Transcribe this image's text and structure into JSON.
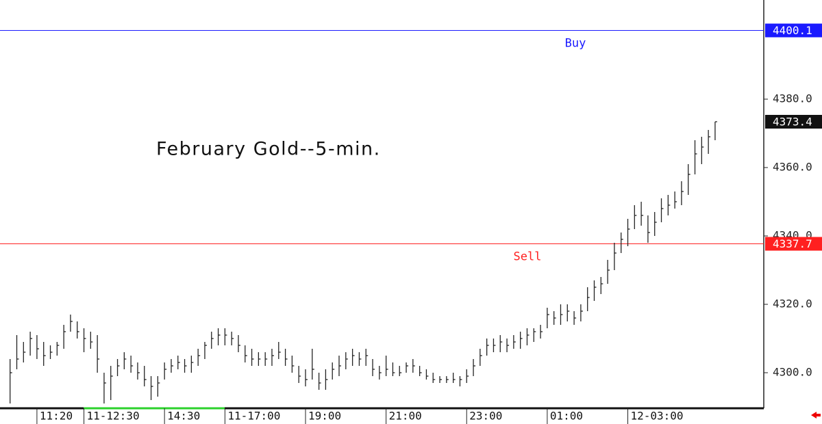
{
  "chart_data": {
    "type": "ohlc",
    "title": "February Gold--5-min.",
    "x": [
      3,
      5,
      7,
      9,
      11,
      13,
      15,
      17,
      19,
      21,
      23,
      25,
      27,
      29,
      31,
      33,
      35,
      37,
      39,
      41,
      43,
      45,
      47,
      49,
      51,
      53,
      55,
      57,
      59,
      61,
      63,
      65,
      67,
      69,
      71,
      73,
      75,
      77,
      79,
      81,
      83,
      85,
      87,
      89,
      91,
      93,
      95,
      97,
      99,
      101,
      103,
      105,
      107,
      109,
      111,
      113,
      115,
      117,
      119,
      121,
      123,
      125,
      127,
      129,
      131,
      133,
      135,
      137,
      139,
      141,
      143,
      145,
      147,
      149,
      151,
      153,
      155,
      157,
      159,
      161,
      163,
      165,
      167,
      169,
      171,
      173,
      175,
      177,
      179,
      181,
      183,
      185,
      187,
      189,
      191,
      193,
      195,
      197,
      199,
      201,
      203,
      205,
      207,
      209,
      211,
      213
    ],
    "high": [
      4304,
      4311,
      4309,
      4312,
      4311,
      4309,
      4308,
      4309,
      4314,
      4317,
      4315,
      4313,
      4312,
      4311,
      4300,
      4302,
      4304,
      4306,
      4305,
      4303,
      4302,
      4299,
      4299,
      4303,
      4304,
      4305,
      4304,
      4305,
      4307,
      4309,
      4312,
      4313,
      4313,
      4312,
      4311,
      4308,
      4307,
      4306,
      4306,
      4307,
      4309,
      4307,
      4305,
      4302,
      4301,
      4307,
      4300,
      4301,
      4303,
      4305,
      4306,
      4307,
      4306,
      4307,
      4304,
      4302,
      4305,
      4303,
      4302,
      4303,
      4304,
      4302,
      4301,
      4300,
      4299,
      4299,
      4300,
      4299,
      4301,
      4304,
      4307,
      4310,
      4310,
      4311,
      4310,
      4311,
      4312,
      4313,
      4313,
      4314,
      4319,
      4318,
      4320,
      4320,
      4318,
      4320,
      4325,
      4327,
      4328,
      4333,
      4338,
      4341,
      4345,
      4349,
      4350,
      4346,
      4347,
      4351,
      4352,
      4353,
      4356,
      4361,
      4368,
      4369,
      4371,
      4373.4
    ],
    "low": [
      4291,
      4301,
      4303,
      4305,
      4304,
      4302,
      4304,
      4305,
      4307,
      4312,
      4310,
      4306,
      4307,
      4300,
      4291,
      4292,
      4299,
      4301,
      4300,
      4298,
      4296,
      4292,
      4293,
      4298,
      4300,
      4301,
      4300,
      4300,
      4302,
      4304,
      4307,
      4308,
      4308,
      4308,
      4306,
      4303,
      4302,
      4302,
      4302,
      4302,
      4304,
      4302,
      4300,
      4297,
      4296,
      4298,
      4295,
      4295,
      4298,
      4299,
      4301,
      4302,
      4302,
      4302,
      4299,
      4298,
      4299,
      4299,
      4299,
      4300,
      4300,
      4299,
      4298,
      4297,
      4297,
      4297,
      4297,
      4296,
      4297,
      4299,
      4302,
      4305,
      4306,
      4306,
      4306,
      4307,
      4307,
      4308,
      4309,
      4310,
      4313,
      4314,
      4314,
      4315,
      4314,
      4315,
      4318,
      4321,
      4323,
      4326,
      4330,
      4335,
      4337,
      4342,
      4343,
      4338,
      4340,
      4344,
      4346,
      4348,
      4349,
      4352,
      4358,
      4361,
      4364,
      4368
    ],
    "close": [
      4300,
      4304,
      4306,
      4310,
      4307,
      4305,
      4306,
      4308,
      4312,
      4315,
      4312,
      4310,
      4309,
      4304,
      4297,
      4299,
      4302,
      4304,
      4302,
      4300,
      4298,
      4296,
      4297,
      4301,
      4302,
      4303,
      4302,
      4303,
      4305,
      4308,
      4310,
      4311,
      4311,
      4310,
      4308,
      4305,
      4304,
      4304,
      4304,
      4305,
      4306,
      4304,
      4302,
      4299,
      4298,
      4301,
      4297,
      4298,
      4301,
      4302,
      4304,
      4305,
      4304,
      4305,
      4301,
      4300,
      4301,
      4300,
      4300,
      4302,
      4302,
      4300,
      4299,
      4298,
      4298,
      4298,
      4298,
      4298,
      4299,
      4302,
      4305,
      4308,
      4308,
      4309,
      4308,
      4309,
      4310,
      4311,
      4312,
      4312,
      4317,
      4316,
      4317,
      4318,
      4316,
      4318,
      4322,
      4325,
      4326,
      4330,
      4335,
      4339,
      4342,
      4346,
      4346,
      4341,
      4344,
      4348,
      4349,
      4350,
      4353,
      4358,
      4364,
      4366,
      4369,
      4373.4
    ],
    "color": "#222222",
    "xlim": [
      0,
      227.5
    ],
    "xticks": [
      {
        "value": 11,
        "label": "11:20"
      },
      {
        "value": 25,
        "label": "11-12:30"
      },
      {
        "value": 49,
        "label": "14:30"
      },
      {
        "value": 67,
        "label": "11-17:00"
      },
      {
        "value": 91,
        "label": "19:00"
      },
      {
        "value": 115,
        "label": "21:00"
      },
      {
        "value": 139,
        "label": "23:00"
      },
      {
        "value": 163,
        "label": "01:00"
      },
      {
        "value": 187,
        "label": "12-03:00"
      }
    ],
    "ylim": [
      4289.6,
      4409
    ],
    "yticks": [
      {
        "value": 4300,
        "label": "4300.0"
      },
      {
        "value": 4320,
        "label": "4320.0"
      },
      {
        "value": 4340,
        "label": "4340.0"
      },
      {
        "value": 4360,
        "label": "4360.0"
      },
      {
        "value": 4380,
        "label": "4380.0"
      }
    ],
    "levels": [
      {
        "name": "Buy",
        "value": 4400.1,
        "color": "#1a1aff"
      },
      {
        "name": "Sell",
        "value": 4337.7,
        "color": "#ff2020"
      }
    ],
    "last_price": 4373.4
  }
}
